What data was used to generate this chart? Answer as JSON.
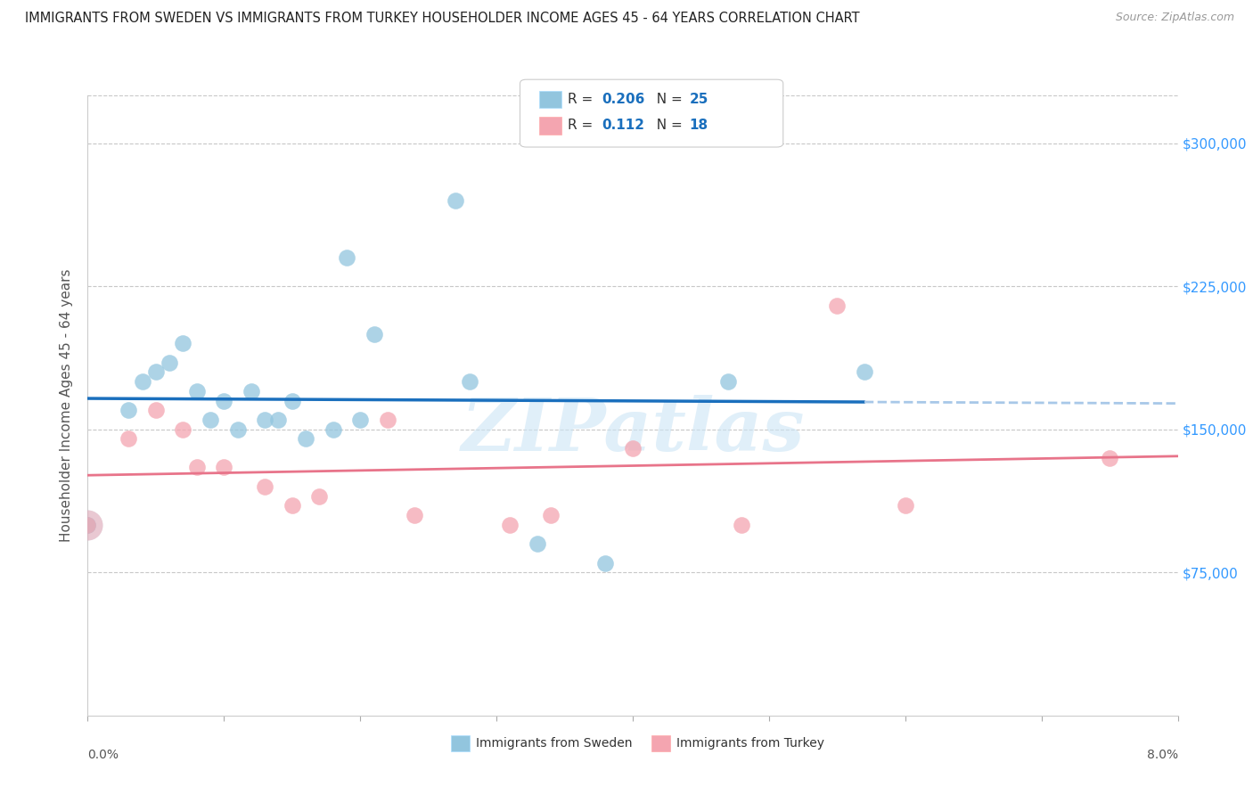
{
  "title": "IMMIGRANTS FROM SWEDEN VS IMMIGRANTS FROM TURKEY HOUSEHOLDER INCOME AGES 45 - 64 YEARS CORRELATION CHART",
  "source": "Source: ZipAtlas.com",
  "ylabel": "Householder Income Ages 45 - 64 years",
  "ytick_labels": [
    "$75,000",
    "$150,000",
    "$225,000",
    "$300,000"
  ],
  "ytick_values": [
    75000,
    150000,
    225000,
    300000
  ],
  "xlim": [
    0.0,
    0.08
  ],
  "ylim": [
    0,
    325000
  ],
  "legend_sweden": "Immigrants from Sweden",
  "legend_turkey": "Immigrants from Turkey",
  "r_sweden": "0.206",
  "n_sweden": "25",
  "r_turkey": "0.112",
  "n_turkey": "18",
  "color_sweden": "#92c5de",
  "color_turkey": "#f4a5b0",
  "color_sweden_line": "#1a6fbd",
  "color_turkey_line": "#e8748a",
  "color_sweden_dash": "#a8c8e8",
  "legend_text_color": "#1a6fbd",
  "sweden_x": [
    0.0,
    0.003,
    0.004,
    0.005,
    0.006,
    0.007,
    0.008,
    0.009,
    0.01,
    0.011,
    0.012,
    0.013,
    0.014,
    0.015,
    0.016,
    0.018,
    0.019,
    0.02,
    0.021,
    0.027,
    0.028,
    0.033,
    0.038,
    0.047,
    0.057
  ],
  "sweden_y": [
    100000,
    160000,
    175000,
    180000,
    185000,
    195000,
    170000,
    155000,
    165000,
    150000,
    170000,
    155000,
    155000,
    165000,
    145000,
    150000,
    240000,
    155000,
    200000,
    270000,
    175000,
    90000,
    80000,
    175000,
    180000
  ],
  "turkey_x": [
    0.0,
    0.003,
    0.005,
    0.007,
    0.008,
    0.01,
    0.013,
    0.015,
    0.017,
    0.022,
    0.024,
    0.031,
    0.034,
    0.04,
    0.048,
    0.055,
    0.06,
    0.075
  ],
  "turkey_y": [
    100000,
    145000,
    160000,
    150000,
    130000,
    130000,
    120000,
    110000,
    115000,
    155000,
    105000,
    100000,
    105000,
    140000,
    100000,
    215000,
    110000,
    135000
  ],
  "watermark": "ZIPatlas",
  "background_color": "#ffffff",
  "grid_color": "#c8c8c8"
}
